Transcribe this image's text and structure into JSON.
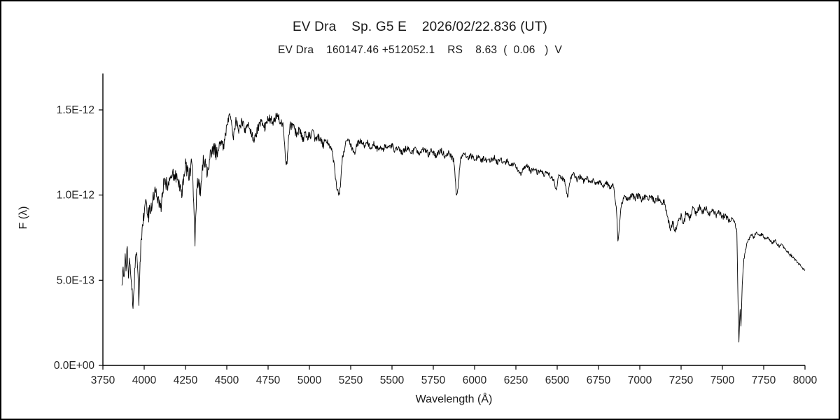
{
  "header": {
    "title": "EV Dra    Sp. G5 E    2026/02/22.836 (UT)",
    "subtitle": "EV Dra    160147.46 +512052.1    RS    8.63  (  0.06   )  V"
  },
  "chart_data": {
    "type": "line",
    "title": "EV Dra    Sp. G5 E    2026/02/22.836 (UT)",
    "subtitle": "EV Dra    160147.46 +512052.1    RS    8.63  (  0.06   )  V",
    "xlabel": "Wavelength (Å)",
    "ylabel": "F (λ)",
    "xlim": [
      3750,
      8000
    ],
    "ylim": [
      0,
      1.5e-12
    ],
    "flux_unit_scale": 1e-12,
    "grid": false,
    "legend": "none",
    "line_color": "#000000",
    "axis_color": "#000000",
    "x_ticks": [
      3750,
      4000,
      4250,
      4500,
      4750,
      5000,
      5250,
      5500,
      5750,
      6000,
      6250,
      6500,
      6750,
      7000,
      7250,
      7500,
      7750,
      8000
    ],
    "y_ticks": [
      {
        "v": 0.0,
        "label": "0.0E+00"
      },
      {
        "v": 0.5,
        "label": "5.0E-13"
      },
      {
        "v": 1.0,
        "label": "1.0E-12"
      },
      {
        "v": 1.5,
        "label": "1.5E-12"
      }
    ],
    "interp_step_angstrom": 2.5,
    "noise_bands": [
      {
        "from": 3860,
        "to": 4450,
        "amp": 0.045
      },
      {
        "from": 4450,
        "to": 5100,
        "amp": 0.028
      },
      {
        "from": 5100,
        "to": 6200,
        "amp": 0.018
      },
      {
        "from": 6200,
        "to": 6850,
        "amp": 0.014
      },
      {
        "from": 6850,
        "to": 7550,
        "amp": 0.018
      },
      {
        "from": 7550,
        "to": 8010,
        "amp": 0.01
      }
    ],
    "anchors_flux_1e12": [
      [
        3865,
        0.46
      ],
      [
        3872,
        0.6
      ],
      [
        3878,
        0.52
      ],
      [
        3885,
        0.68
      ],
      [
        3890,
        0.55
      ],
      [
        3898,
        0.7
      ],
      [
        3905,
        0.52
      ],
      [
        3912,
        0.62
      ],
      [
        3920,
        0.55
      ],
      [
        3933,
        0.32
      ],
      [
        3945,
        0.6
      ],
      [
        3955,
        0.68
      ],
      [
        3968,
        0.38
      ],
      [
        3980,
        0.7
      ],
      [
        3995,
        0.88
      ],
      [
        4010,
        0.95
      ],
      [
        4026,
        0.88
      ],
      [
        4045,
        0.95
      ],
      [
        4063,
        1.02
      ],
      [
        4080,
        0.98
      ],
      [
        4101,
        0.92
      ],
      [
        4120,
        1.08
      ],
      [
        4144,
        1.05
      ],
      [
        4170,
        1.12
      ],
      [
        4200,
        1.1
      ],
      [
        4227,
        1.02
      ],
      [
        4250,
        1.18
      ],
      [
        4271,
        1.1
      ],
      [
        4290,
        1.2
      ],
      [
        4300,
        0.95
      ],
      [
        4308,
        0.73
      ],
      [
        4320,
        1.08
      ],
      [
        4340,
        1.02
      ],
      [
        4360,
        1.22
      ],
      [
        4383,
        1.12
      ],
      [
        4400,
        1.25
      ],
      [
        4420,
        1.28
      ],
      [
        4440,
        1.24
      ],
      [
        4460,
        1.32
      ],
      [
        4481,
        1.28
      ],
      [
        4500,
        1.4
      ],
      [
        4520,
        1.48
      ],
      [
        4540,
        1.35
      ],
      [
        4555,
        1.44
      ],
      [
        4570,
        1.38
      ],
      [
        4590,
        1.43
      ],
      [
        4610,
        1.38
      ],
      [
        4630,
        1.42
      ],
      [
        4650,
        1.35
      ],
      [
        4668,
        1.32
      ],
      [
        4690,
        1.4
      ],
      [
        4710,
        1.44
      ],
      [
        4730,
        1.4
      ],
      [
        4755,
        1.45
      ],
      [
        4780,
        1.43
      ],
      [
        4800,
        1.47
      ],
      [
        4820,
        1.44
      ],
      [
        4840,
        1.4
      ],
      [
        4861,
        1.16
      ],
      [
        4880,
        1.4
      ],
      [
        4900,
        1.42
      ],
      [
        4920,
        1.36
      ],
      [
        4940,
        1.38
      ],
      [
        4957,
        1.33
      ],
      [
        4980,
        1.36
      ],
      [
        5000,
        1.34
      ],
      [
        5020,
        1.36
      ],
      [
        5040,
        1.32
      ],
      [
        5060,
        1.34
      ],
      [
        5085,
        1.3
      ],
      [
        5110,
        1.32
      ],
      [
        5140,
        1.25
      ],
      [
        5167,
        1.03
      ],
      [
        5183,
        1.0
      ],
      [
        5200,
        1.22
      ],
      [
        5220,
        1.3
      ],
      [
        5240,
        1.32
      ],
      [
        5256,
        1.28
      ],
      [
        5270,
        1.24
      ],
      [
        5290,
        1.3
      ],
      [
        5310,
        1.32
      ],
      [
        5330,
        1.29
      ],
      [
        5350,
        1.31
      ],
      [
        5370,
        1.28
      ],
      [
        5390,
        1.3
      ],
      [
        5410,
        1.27
      ],
      [
        5430,
        1.29
      ],
      [
        5445,
        1.26
      ],
      [
        5460,
        1.29
      ],
      [
        5480,
        1.27
      ],
      [
        5500,
        1.29
      ],
      [
        5520,
        1.26
      ],
      [
        5540,
        1.28
      ],
      [
        5560,
        1.25
      ],
      [
        5580,
        1.27
      ],
      [
        5600,
        1.28
      ],
      [
        5620,
        1.25
      ],
      [
        5640,
        1.27
      ],
      [
        5660,
        1.24
      ],
      [
        5680,
        1.26
      ],
      [
        5700,
        1.27
      ],
      [
        5720,
        1.24
      ],
      [
        5740,
        1.26
      ],
      [
        5760,
        1.23
      ],
      [
        5780,
        1.25
      ],
      [
        5800,
        1.26
      ],
      [
        5820,
        1.23
      ],
      [
        5840,
        1.25
      ],
      [
        5860,
        1.22
      ],
      [
        5875,
        1.2
      ],
      [
        5890,
        0.99
      ],
      [
        5900,
        1.05
      ],
      [
        5915,
        1.22
      ],
      [
        5940,
        1.24
      ],
      [
        5960,
        1.22
      ],
      [
        5980,
        1.23
      ],
      [
        6000,
        1.21
      ],
      [
        6020,
        1.23
      ],
      [
        6040,
        1.2
      ],
      [
        6060,
        1.22
      ],
      [
        6080,
        1.19
      ],
      [
        6100,
        1.21
      ],
      [
        6120,
        1.22
      ],
      [
        6140,
        1.19
      ],
      [
        6160,
        1.21
      ],
      [
        6180,
        1.18
      ],
      [
        6200,
        1.2
      ],
      [
        6220,
        1.17
      ],
      [
        6240,
        1.19
      ],
      [
        6260,
        1.15
      ],
      [
        6280,
        1.12
      ],
      [
        6300,
        1.16
      ],
      [
        6320,
        1.17
      ],
      [
        6340,
        1.14
      ],
      [
        6360,
        1.16
      ],
      [
        6380,
        1.13
      ],
      [
        6400,
        1.15
      ],
      [
        6420,
        1.12
      ],
      [
        6440,
        1.14
      ],
      [
        6460,
        1.11
      ],
      [
        6480,
        1.08
      ],
      [
        6495,
        1.02
      ],
      [
        6510,
        1.12
      ],
      [
        6530,
        1.1
      ],
      [
        6545,
        1.08
      ],
      [
        6563,
        0.99
      ],
      [
        6580,
        1.1
      ],
      [
        6600,
        1.12
      ],
      [
        6620,
        1.09
      ],
      [
        6640,
        1.11
      ],
      [
        6660,
        1.08
      ],
      [
        6680,
        1.1
      ],
      [
        6700,
        1.07
      ],
      [
        6720,
        1.09
      ],
      [
        6740,
        1.06
      ],
      [
        6760,
        1.08
      ],
      [
        6780,
        1.05
      ],
      [
        6800,
        1.07
      ],
      [
        6820,
        1.04
      ],
      [
        6840,
        1.06
      ],
      [
        6860,
        0.9
      ],
      [
        6868,
        0.72
      ],
      [
        6878,
        0.85
      ],
      [
        6890,
        0.95
      ],
      [
        6910,
        0.99
      ],
      [
        6930,
        0.97
      ],
      [
        6950,
        1.0
      ],
      [
        6970,
        0.98
      ],
      [
        6990,
        1.0
      ],
      [
        7010,
        0.97
      ],
      [
        7030,
        0.99
      ],
      [
        7050,
        0.98
      ],
      [
        7070,
        0.99
      ],
      [
        7090,
        0.96
      ],
      [
        7110,
        0.98
      ],
      [
        7130,
        0.95
      ],
      [
        7150,
        0.96
      ],
      [
        7165,
        0.88
      ],
      [
        7185,
        0.8
      ],
      [
        7200,
        0.84
      ],
      [
        7215,
        0.79
      ],
      [
        7230,
        0.83
      ],
      [
        7250,
        0.88
      ],
      [
        7265,
        0.82
      ],
      [
        7280,
        0.9
      ],
      [
        7300,
        0.86
      ],
      [
        7320,
        0.92
      ],
      [
        7340,
        0.89
      ],
      [
        7360,
        0.93
      ],
      [
        7380,
        0.9
      ],
      [
        7400,
        0.92
      ],
      [
        7420,
        0.89
      ],
      [
        7440,
        0.91
      ],
      [
        7460,
        0.88
      ],
      [
        7480,
        0.9
      ],
      [
        7500,
        0.87
      ],
      [
        7520,
        0.88
      ],
      [
        7540,
        0.85
      ],
      [
        7560,
        0.86
      ],
      [
        7575,
        0.84
      ],
      [
        7588,
        0.78
      ],
      [
        7594,
        0.4
      ],
      [
        7600,
        0.14
      ],
      [
        7607,
        0.33
      ],
      [
        7613,
        0.22
      ],
      [
        7620,
        0.48
      ],
      [
        7630,
        0.62
      ],
      [
        7645,
        0.7
      ],
      [
        7660,
        0.74
      ],
      [
        7675,
        0.77
      ],
      [
        7690,
        0.75
      ],
      [
        7705,
        0.78
      ],
      [
        7720,
        0.76
      ],
      [
        7740,
        0.77
      ],
      [
        7760,
        0.74
      ],
      [
        7780,
        0.75
      ],
      [
        7800,
        0.72
      ],
      [
        7820,
        0.73
      ],
      [
        7840,
        0.7
      ],
      [
        7860,
        0.71
      ],
      [
        7880,
        0.68
      ],
      [
        7900,
        0.66
      ],
      [
        7920,
        0.64
      ],
      [
        7940,
        0.62
      ],
      [
        7960,
        0.6
      ],
      [
        7980,
        0.58
      ],
      [
        8000,
        0.56
      ]
    ]
  }
}
